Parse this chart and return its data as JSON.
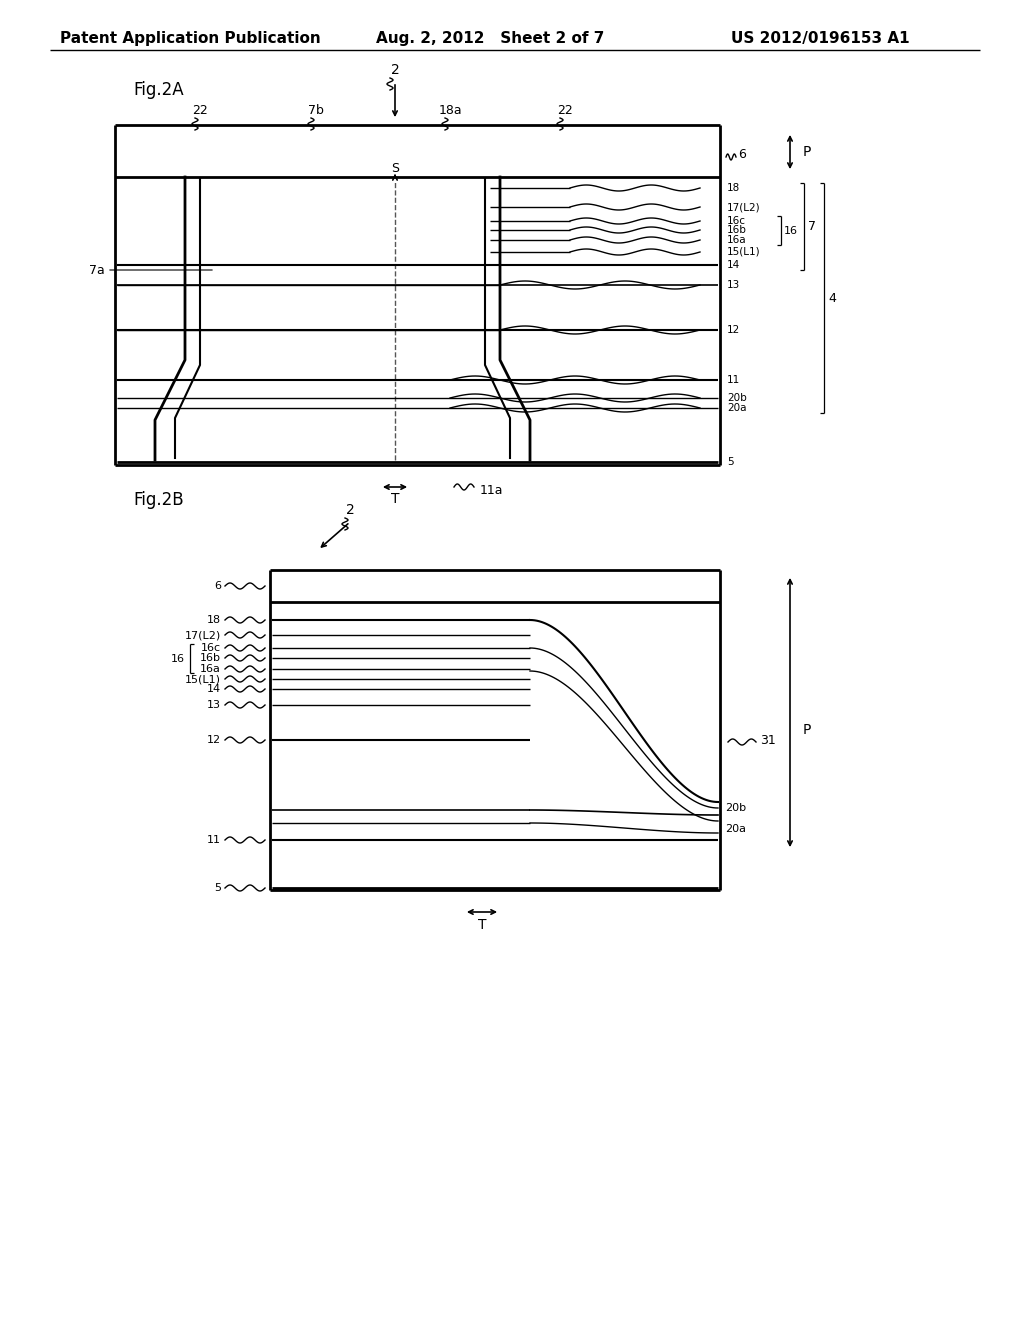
{
  "header_left": "Patent Application Publication",
  "header_mid": "Aug. 2, 2012   Sheet 2 of 7",
  "header_right": "US 2012/0196153 A1",
  "fig2a_label": "Fig.2A",
  "fig2b_label": "Fig.2B",
  "bg_color": "#ffffff",
  "line_color": "#000000"
}
